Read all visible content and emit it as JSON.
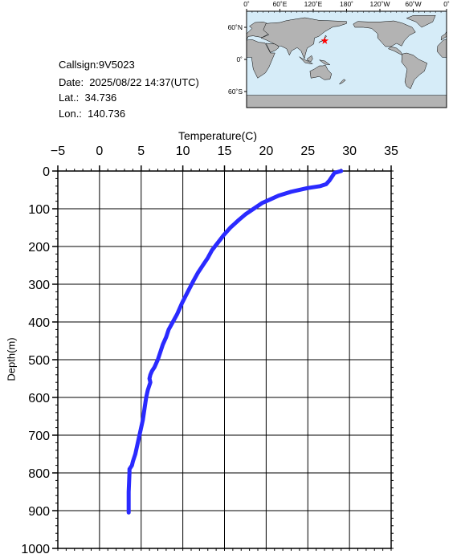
{
  "station": {
    "callsign": "Callsign:9V5023",
    "date": "Date:  2025/08/22 14:37(UTC)",
    "lat": "Lat.:  34.736",
    "lon": "Lon.:  140.736"
  },
  "map": {
    "top_labels": [
      "0˚",
      "60˚E",
      "120˚E",
      "180˚",
      "120˚W",
      "60˚W",
      "0˚"
    ],
    "left_labels": [
      "60˚N",
      "0˚",
      "60˚S"
    ],
    "marker": {
      "lon": 140.736,
      "lat": 34.736
    },
    "colors": {
      "ocean": "#d6ecf8",
      "land": "#b3b3b3",
      "marker": "#ff0000"
    }
  },
  "chart_data": {
    "type": "line",
    "xlabel": "Temperature(C)",
    "ylabel": "Depth(m)",
    "xlim": [
      -5,
      35
    ],
    "ylim": [
      1000,
      0
    ],
    "x_ticks": [
      -5,
      0,
      5,
      10,
      15,
      20,
      25,
      30,
      35
    ],
    "y_ticks": [
      0,
      100,
      200,
      300,
      400,
      500,
      600,
      700,
      800,
      900,
      1000
    ],
    "grid": true,
    "series_color": "#2a2aff",
    "series": [
      {
        "x": [
          29.0,
          28.2,
          27.9,
          27.6,
          27.4,
          27.2,
          26.5,
          25.0,
          23.0,
          21.5,
          20.5,
          19.5,
          18.5,
          17.5,
          16.7,
          16.2,
          15.7,
          14.9,
          14.2,
          13.5,
          13.0,
          12.4,
          11.8,
          11.3,
          10.6,
          9.9,
          9.3,
          8.8,
          8.3,
          8.0,
          7.6,
          7.3,
          7.0,
          6.6,
          6.3,
          6.1,
          6.0,
          6.1,
          5.8,
          5.6,
          5.4,
          5.2,
          4.9,
          4.6,
          4.3,
          4.0,
          3.9,
          3.6,
          3.6,
          3.5,
          3.5
        ],
        "y": [
          0,
          5,
          15,
          25,
          30,
          35,
          40,
          45,
          55,
          65,
          75,
          85,
          100,
          115,
          130,
          140,
          150,
          170,
          190,
          210,
          230,
          250,
          270,
          290,
          320,
          350,
          380,
          400,
          420,
          440,
          460,
          480,
          500,
          520,
          530,
          540,
          550,
          560,
          580,
          600,
          630,
          660,
          690,
          720,
          750,
          770,
          780,
          790,
          800,
          850,
          905
        ]
      }
    ]
  }
}
